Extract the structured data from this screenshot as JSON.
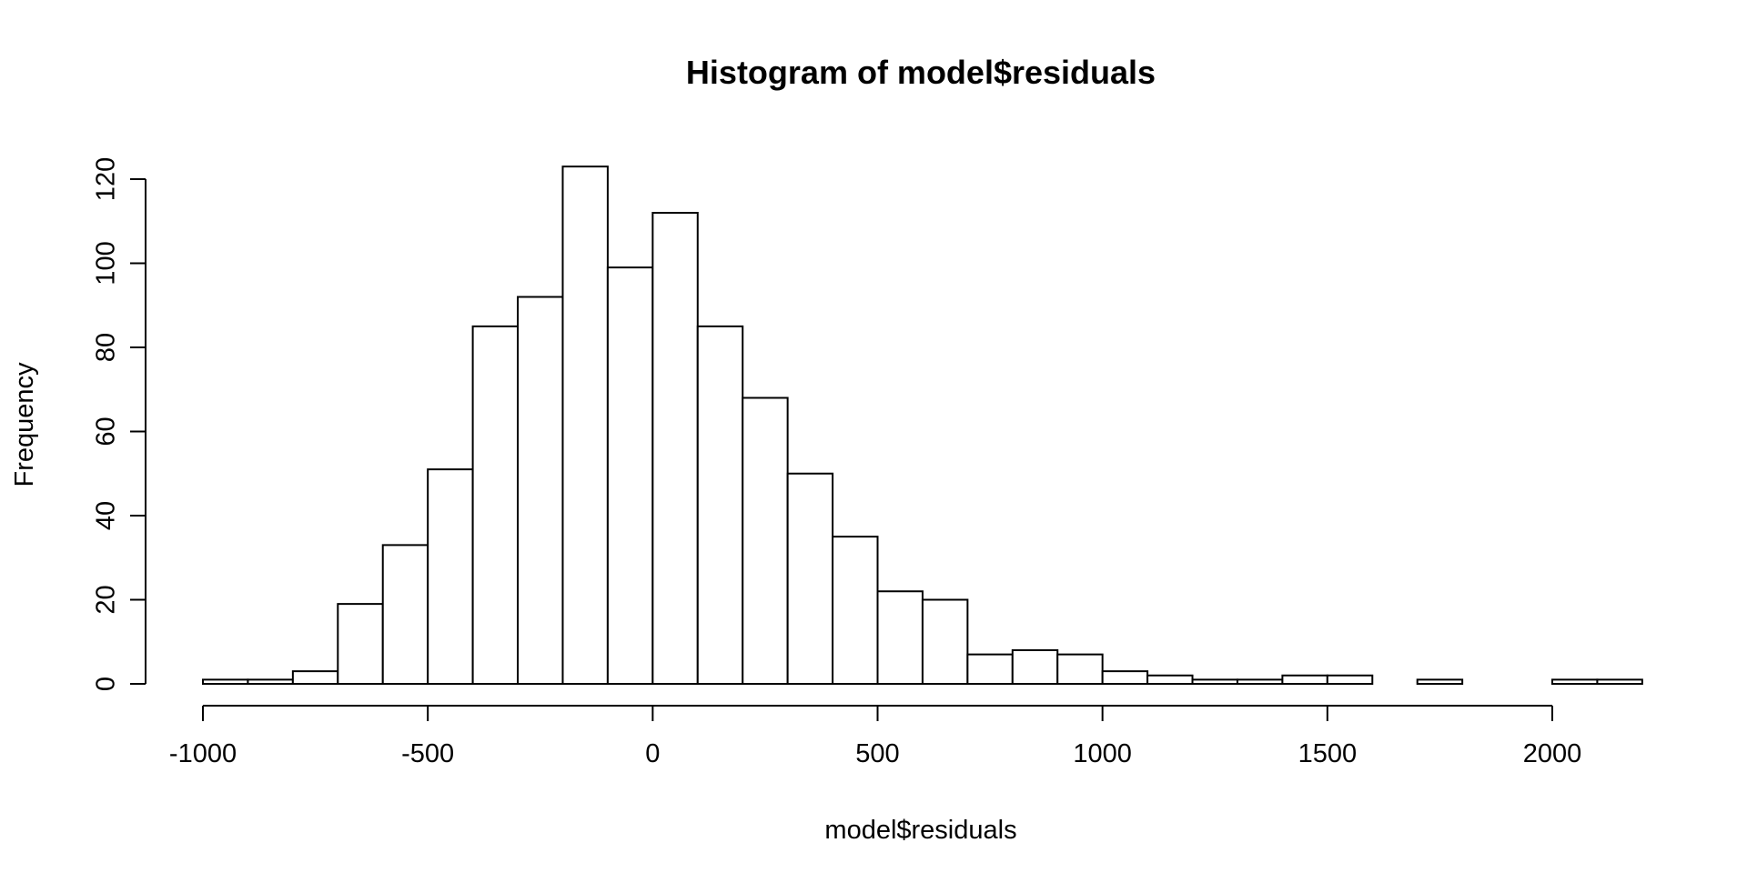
{
  "chart_data": {
    "type": "bar",
    "title": "Histogram of model$residuals",
    "xlabel": "model$residuals",
    "ylabel": "Frequency",
    "bin_width": 100,
    "bin_starts": [
      -1000,
      -900,
      -800,
      -700,
      -600,
      -500,
      -400,
      -300,
      -200,
      -100,
      0,
      100,
      200,
      300,
      400,
      500,
      600,
      700,
      800,
      900,
      1000,
      1100,
      1200,
      1300,
      1400,
      1500,
      1600,
      1700,
      1800,
      1900,
      2000,
      2100
    ],
    "values": [
      1,
      1,
      3,
      19,
      33,
      51,
      85,
      92,
      123,
      99,
      112,
      85,
      68,
      50,
      35,
      22,
      20,
      7,
      8,
      7,
      3,
      2,
      1,
      1,
      2,
      2,
      0,
      1,
      0,
      0,
      1,
      1
    ],
    "xlim": [
      -1000,
      2200
    ],
    "ylim": [
      0,
      120
    ],
    "x_ticks": [
      "-1000",
      "-500",
      "0",
      "500",
      "1000",
      "1500",
      "2000"
    ],
    "y_ticks": [
      "0",
      "20",
      "40",
      "60",
      "80",
      "100",
      "120"
    ],
    "grid": false,
    "bar_fill": "#ffffff",
    "bar_stroke": "#000000"
  }
}
